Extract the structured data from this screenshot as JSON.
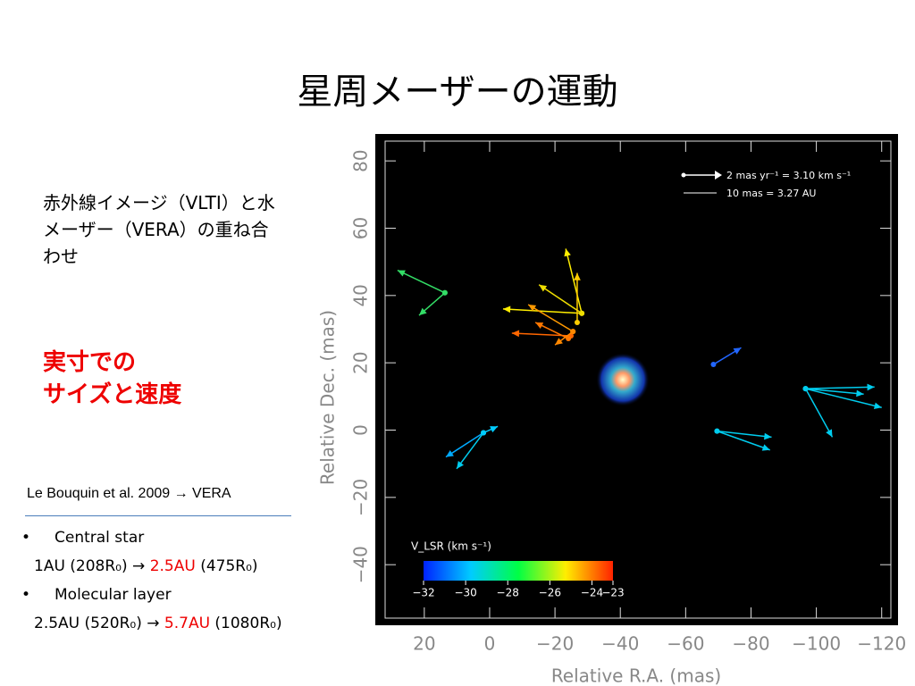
{
  "slide": {
    "title": "星周メーザーの運動",
    "note": "赤外線イメージ（VLTI）と水メーザー（VERA）の重ね合わせ",
    "highlight": [
      "実寸での",
      "サイズと速度"
    ],
    "reference": "Le Bouquin et al. 2009  → VERA",
    "bullets": [
      {
        "label": "Central star",
        "detail": [
          "1AU (208R₀)   → ",
          "2.5AU",
          " (475R₀)"
        ]
      },
      {
        "label": "Molecular layer",
        "detail": [
          "2.5AU (520R₀)  → ",
          "5.7AU",
          " (1080R₀)"
        ]
      }
    ]
  },
  "chart_data": {
    "type": "vector",
    "xlabel": "Relative R.A. (mas)",
    "ylabel": "Relative Dec. (mas)",
    "xlim": [
      35,
      -125
    ],
    "ylim": [
      -58,
      88
    ],
    "xticks": [
      20,
      0,
      {
        "value": -20,
        "label": "−20"
      },
      {
        "value": -40,
        "label": "−40"
      },
      {
        "value": -60,
        "label": "−60"
      },
      {
        "value": -80,
        "label": "−80"
      },
      {
        "value": -100,
        "label": "−100"
      },
      {
        "value": -120,
        "label": "−120"
      }
    ],
    "yticks": [
      {
        "value": -40,
        "label": "−40"
      },
      {
        "value": -20,
        "label": "−20"
      },
      0,
      20,
      40,
      60,
      80
    ],
    "key": [
      "2 mas yr⁻¹ =  3.10 km s⁻¹",
      "10 mas = 3.27 AU"
    ],
    "colorbar": {
      "label": "V_LSR  (km s⁻¹)",
      "lim": [
        -32,
        -23
      ],
      "ticks": [
        {
          "value": -32,
          "label": "−32"
        },
        {
          "value": -30,
          "label": "−30"
        },
        {
          "value": -28,
          "label": "−28"
        },
        {
          "value": -26,
          "label": "−26"
        },
        {
          "value": -24,
          "label": "−24"
        },
        {
          "value": -23,
          "label": "−23"
        }
      ]
    },
    "vectors": [
      {
        "x": 13.7,
        "y": 40.8,
        "x2": 28.2,
        "y2": 47.5,
        "color": "#33dd66"
      },
      {
        "x": 13.7,
        "y": 40.8,
        "x2": 21.6,
        "y2": 34.1,
        "color": "#33dd66"
      },
      {
        "x": -28.2,
        "y": 34.7,
        "x2": -23.3,
        "y2": 53.9,
        "color": "#ffee00"
      },
      {
        "x": -28.2,
        "y": 34.7,
        "x2": -4.1,
        "y2": 36.0,
        "color": "#ffee00"
      },
      {
        "x": -28.2,
        "y": 34.7,
        "x2": -15.1,
        "y2": 43.2,
        "color": "#eedd00"
      },
      {
        "x": -26.8,
        "y": 32.0,
        "x2": -26.8,
        "y2": 46.7,
        "color": "#ffcc00"
      },
      {
        "x": -25.5,
        "y": 29.3,
        "x2": -11.8,
        "y2": 37.3,
        "color": "#ff9900"
      },
      {
        "x": -24.9,
        "y": 28.0,
        "x2": -6.8,
        "y2": 28.8,
        "color": "#ff6600"
      },
      {
        "x": -24.1,
        "y": 27.2,
        "x2": -14.0,
        "y2": 32.0,
        "color": "#ff7700"
      },
      {
        "x": -25.5,
        "y": 29.3,
        "x2": -20.0,
        "y2": 25.3,
        "color": "#ff8800"
      },
      {
        "x": -68.5,
        "y": 19.5,
        "x2": -77.0,
        "y2": 24.5,
        "color": "#2266ff"
      },
      {
        "x": -96.7,
        "y": 12.3,
        "x2": -117.8,
        "y2": 12.8,
        "color": "#00ccee"
      },
      {
        "x": -96.7,
        "y": 12.3,
        "x2": -120,
        "y2": 6.7,
        "color": "#00ccee"
      },
      {
        "x": -96.7,
        "y": 12.3,
        "x2": -104.9,
        "y2": -2.1,
        "color": "#00ccee"
      },
      {
        "x": -96.7,
        "y": 12.3,
        "x2": -114.5,
        "y2": 10.7,
        "color": "#00ccee"
      },
      {
        "x": -69.6,
        "y": -0.3,
        "x2": -86.3,
        "y2": -2.1,
        "color": "#00ccee"
      },
      {
        "x": -69.6,
        "y": -0.3,
        "x2": -85.8,
        "y2": -5.9,
        "color": "#00ccee"
      },
      {
        "x": 1.9,
        "y": -0.8,
        "x2": 13.4,
        "y2": -8.0,
        "color": "#00aaff"
      },
      {
        "x": 1.9,
        "y": -0.8,
        "x2": 10.1,
        "y2": -11.5,
        "color": "#00ccee"
      },
      {
        "x": 1.9,
        "y": -0.8,
        "x2": -2.5,
        "y2": 1.1,
        "color": "#00ccff"
      }
    ]
  }
}
